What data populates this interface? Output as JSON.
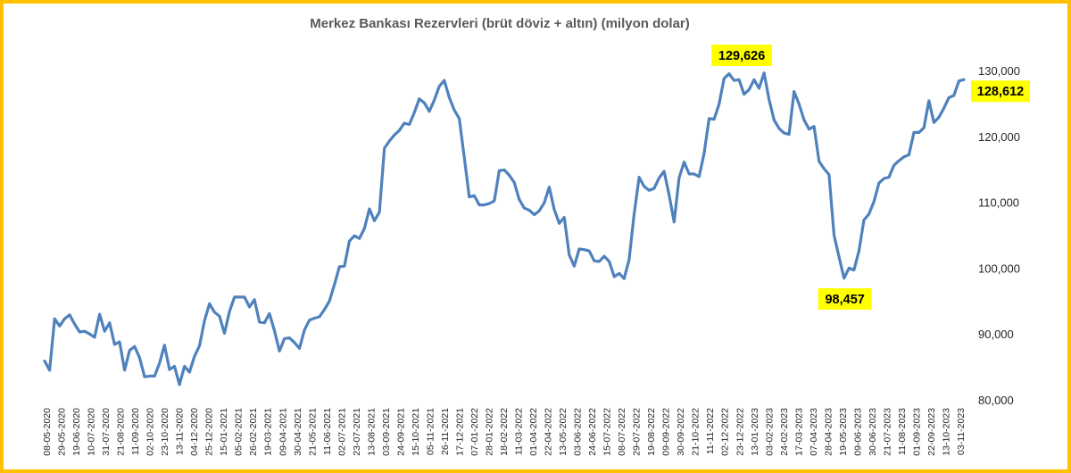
{
  "chart_data": {
    "type": "line",
    "title": "Merkez Bankası Rezervleri (brüt döviz + altın) (milyon dolar)",
    "xlabel": "",
    "ylabel": "",
    "ylim": [
      80000,
      130000
    ],
    "y_ticks": [
      "80,000",
      "90,000",
      "100,000",
      "110,000",
      "120,000",
      "130,000"
    ],
    "y_axis_side": "right",
    "grid": false,
    "legend": "none",
    "x_tick_labels": [
      "08-05-2020",
      "29-05-2020",
      "19-06-2020",
      "10-07-2020",
      "31-07-2020",
      "21-08-2020",
      "11-09-2020",
      "02-10-2020",
      "23-10-2020",
      "13-11-2020",
      "04-12-2020",
      "25-12-2020",
      "15-01-2021",
      "05-02-2021",
      "26-02-2021",
      "19-03-2021",
      "09-04-2021",
      "30-04-2021",
      "21-05-2021",
      "11-06-2021",
      "02-07-2021",
      "23-07-2021",
      "13-08-2021",
      "03-09-2021",
      "24-09-2021",
      "15-10-2021",
      "05-11-2021",
      "26-11-2021",
      "17-12-2021",
      "07-01-2022",
      "28-01-2022",
      "18-02-2022",
      "11-03-2022",
      "01-04-2022",
      "22-04-2022",
      "13-05-2022",
      "03-06-2022",
      "24-06-2022",
      "15-07-2022",
      "08-07-2022",
      "29-07-2022",
      "19-08-2022",
      "09-09-2022",
      "30-09-2022",
      "21-10-2022",
      "11-11-2022",
      "02-12-2022",
      "23-12-2022",
      "13-01-2023",
      "03-02-2023",
      "24-02-2023",
      "17-03-2023",
      "07-04-2023",
      "28-04-2023",
      "19-05-2023",
      "09-06-2023",
      "30-06-2023",
      "21-07-2023",
      "11-08-2023",
      "01-09-2023",
      "22-09-2023",
      "13-10-2023",
      "03-11-2023"
    ],
    "series": [
      {
        "color": "#4f81bd",
        "values": [
          85900,
          84500,
          92300,
          91200,
          92300,
          92900,
          91500,
          90300,
          90400,
          90000,
          89500,
          93000,
          90400,
          91700,
          88400,
          88800,
          84500,
          87500,
          88100,
          86400,
          83500,
          83600,
          83600,
          85600,
          88300,
          84600,
          85100,
          82300,
          85100,
          84200,
          86600,
          88200,
          92000,
          94600,
          93300,
          92700,
          90100,
          93400,
          95600,
          95600,
          95600,
          94100,
          95200,
          91800,
          91700,
          93100,
          90500,
          87400,
          89300,
          89400,
          88700,
          87800,
          90600,
          92100,
          92400,
          92600,
          93700,
          95000,
          97500,
          100200,
          100300,
          104100,
          104900,
          104500,
          106000,
          109000,
          107200,
          108500,
          118200,
          119300,
          120200,
          120900,
          122000,
          121800,
          123600,
          125700,
          125100,
          123800,
          125500,
          127600,
          128500,
          125900,
          124000,
          122700,
          116800,
          110800,
          111000,
          109600,
          109600,
          109800,
          110200,
          114800,
          114900,
          114100,
          113000,
          110400,
          109100,
          108800,
          108100,
          108700,
          109900,
          112300,
          108900,
          106800,
          107700,
          102000,
          100300,
          102900,
          102800,
          102600,
          101100,
          101000,
          101800,
          101000,
          98700,
          99200,
          98400,
          101300,
          108200,
          113800,
          112400,
          111800,
          112100,
          113700,
          114700,
          111100,
          107000,
          113700,
          116100,
          114300,
          114300,
          113900,
          117400,
          122700,
          122600,
          124900,
          128800,
          129500,
          128500,
          128600,
          126400,
          127100,
          128600,
          127300,
          129626,
          125600,
          122500,
          121200,
          120500,
          120300,
          126800,
          124900,
          122500,
          121100,
          121500,
          116200,
          115100,
          114200,
          105000,
          101700,
          98457,
          100000,
          99700,
          102600,
          107300,
          108200,
          110100,
          112900,
          113600,
          113800,
          115600,
          116300,
          116900,
          117200,
          120600,
          120600,
          121300,
          125400,
          122100,
          122900,
          124300,
          125900,
          126200,
          128400,
          128612
        ]
      }
    ],
    "callouts": [
      {
        "label": "129,626",
        "value": 129626
      },
      {
        "label": "98,457",
        "value": 98457
      },
      {
        "label": "128,612",
        "value": 128612
      }
    ]
  }
}
